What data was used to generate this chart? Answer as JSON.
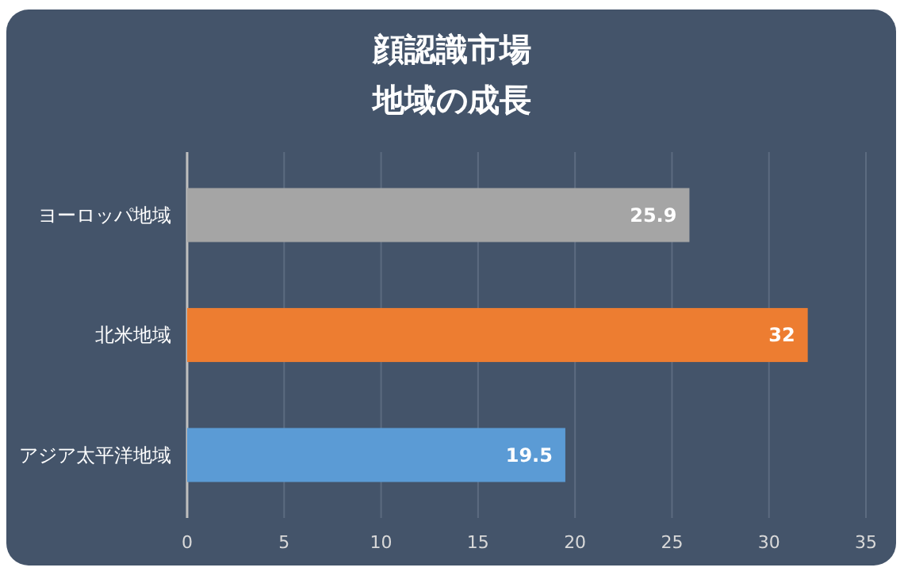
{
  "chart_data": {
    "type": "bar",
    "orientation": "horizontal",
    "title": "顔認識市場",
    "subtitle": "地域の成長",
    "categories": [
      "ヨーロッパ地域",
      "北米地域",
      "アジア太平洋地域"
    ],
    "values": [
      25.9,
      32,
      19.5
    ],
    "colors": [
      "#a5a5a5",
      "#ed7d31",
      "#5b9bd5"
    ],
    "xlim": [
      0,
      35
    ],
    "xticks": [
      0,
      5,
      10,
      15,
      20,
      25,
      30,
      35
    ],
    "grid": "x",
    "data_labels": true
  }
}
